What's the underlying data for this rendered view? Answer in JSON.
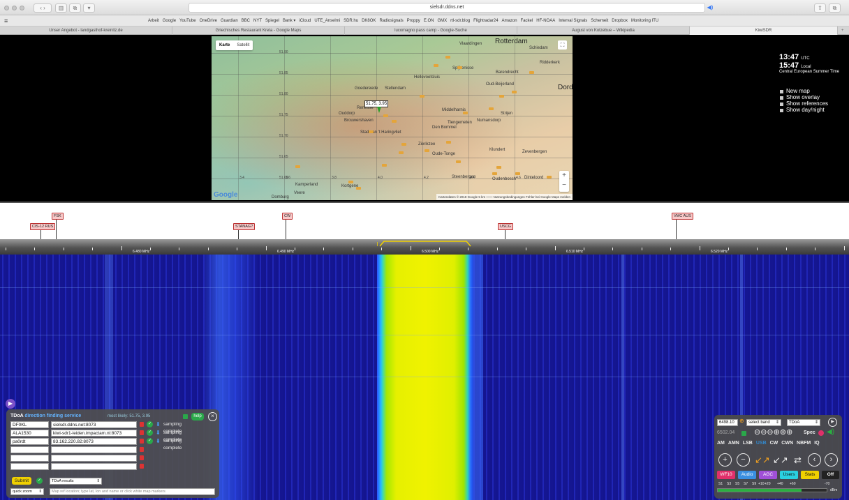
{
  "browser": {
    "url": "sielsdr.ddns.net",
    "bookmarks": [
      "Arbeit",
      "Google",
      "YouTube",
      "OneDrive",
      "Guardian",
      "BBC",
      "NYT",
      "Spiegel",
      "Bank ▾",
      "iCloud",
      "UTE_Anselmi",
      "SDR.hu",
      "DK8OK",
      "Radiosignals",
      "Proppy",
      "E.ON",
      "GMX",
      "rtl-sdr.blog",
      "Flightradar24",
      "Amazon",
      "Fackel",
      "HF-NOAA",
      "Interval Signals",
      "Schemeit",
      "Dropbox",
      "Monitoring ITU"
    ],
    "tabs": [
      "Unser Angebot - landgasthof-kreinitz.de",
      "Griechisches Restaurant Kreta - Google Maps",
      "lucomagno pass camp - Google-Suche",
      "August von Kotzebue – Wikipedia",
      "KiwiSDR"
    ]
  },
  "map": {
    "type_buttons": [
      "Karte",
      "Satellit"
    ],
    "lat_labels": [
      "51.90",
      "51.85",
      "51.80",
      "51.75",
      "51.70",
      "51.65",
      "51.60"
    ],
    "lon_labels": [
      "3.4",
      "3.6",
      "3.8",
      "4.0",
      "4.2",
      "4.4",
      "4.6"
    ],
    "cities": [
      "Rotterdam",
      "Vlaardingen",
      "Schiedam",
      "Spijkenisse",
      "Barendrecht",
      "Ridderkerk",
      "Hellevoetsluis",
      "Oud-Beijerland",
      "Goedereede",
      "Stellendam",
      "Middelharnis",
      "Ouddorp",
      "Brouwershaven",
      "Den Bommel",
      "Zierikzee",
      "Stad aan 't Haringvliet",
      "Oude-Tonge",
      "Klundert",
      "Zevenbergen",
      "Steenbergen",
      "Oudenbosch",
      "Dinteloord",
      "Kamperland",
      "Kortgene",
      "Veere",
      "Domburg",
      "Strijen",
      "Numansdorp",
      "Tiengemeten",
      "Renesse",
      "Dordr"
    ],
    "marker_label": "51.75, 3.95",
    "logo": "Google",
    "footer": "Kartendaten © 2018 Google   5 km ⎯⎯⎯⎯  Nutzungsbedingungen   Fehler bei Google Maps melden"
  },
  "clock": {
    "utc_time": "13:47",
    "utc_label": "UTC",
    "local_time": "15:47",
    "local_label": "Local",
    "timezone": "Central European Summer Time"
  },
  "map_options": [
    "New map",
    "Show overlay",
    "Show references",
    "Show day/night"
  ],
  "dx_labels": [
    "FSK",
    "CIS-12 RUS",
    "STANAG?",
    "CW",
    "USCG",
    "VMC AUS"
  ],
  "freq_scale": [
    "6.480 MHz",
    "6.490 MHz",
    "6.500 MHz",
    "6.510 MHz",
    "6.520 MHz"
  ],
  "tdoa": {
    "title_a": "TDoA",
    "title_b": "direction finding service",
    "most_likely": "most likely: 51.75, 3.95",
    "help": "help",
    "rows": [
      {
        "call": "DF0KL",
        "host": "sielsdr.ddns.net:8073",
        "status": "sampling complete"
      },
      {
        "call": "ALA1530",
        "host": "kiwi-sdr1-leiden.impactam.nl:8073",
        "status": "sampling complete"
      },
      {
        "call": "pa0rdt",
        "host": "83.162.220.82:8073",
        "status": "sampling complete"
      },
      {
        "call": "",
        "host": "",
        "status": ""
      },
      {
        "call": "",
        "host": "",
        "status": ""
      },
      {
        "call": "",
        "host": "",
        "status": ""
      }
    ],
    "submit": "Submit",
    "results_select": "TDoA results",
    "quick_zoom": "quick zoom",
    "ref_placeholder": "Map ref location; type lat, lon and name or click white map markers"
  },
  "kiwi": {
    "freq": "6498.10",
    "band_select": "select band",
    "ext_select": "TDoA",
    "sub_freq": "6502.04",
    "zoom_glyphs": "⊖⊖⊖⊕⊕⊕",
    "spec": "Spec",
    "modes": [
      "AM",
      "AMN",
      "LSB",
      "USB",
      "CW",
      "CWN",
      "NBFM",
      "IQ"
    ],
    "selected_mode": "USB",
    "buttons": [
      "WF10",
      "Audio",
      "AGC",
      "Users",
      "Stats",
      "Off"
    ],
    "smeter_labels": [
      "S1",
      "S3",
      "S5",
      "S7",
      "S9",
      "+10",
      "+20",
      "+40",
      "+60",
      "-70"
    ],
    "dbm": "dBm",
    "s_level_fraction": 0.77
  }
}
